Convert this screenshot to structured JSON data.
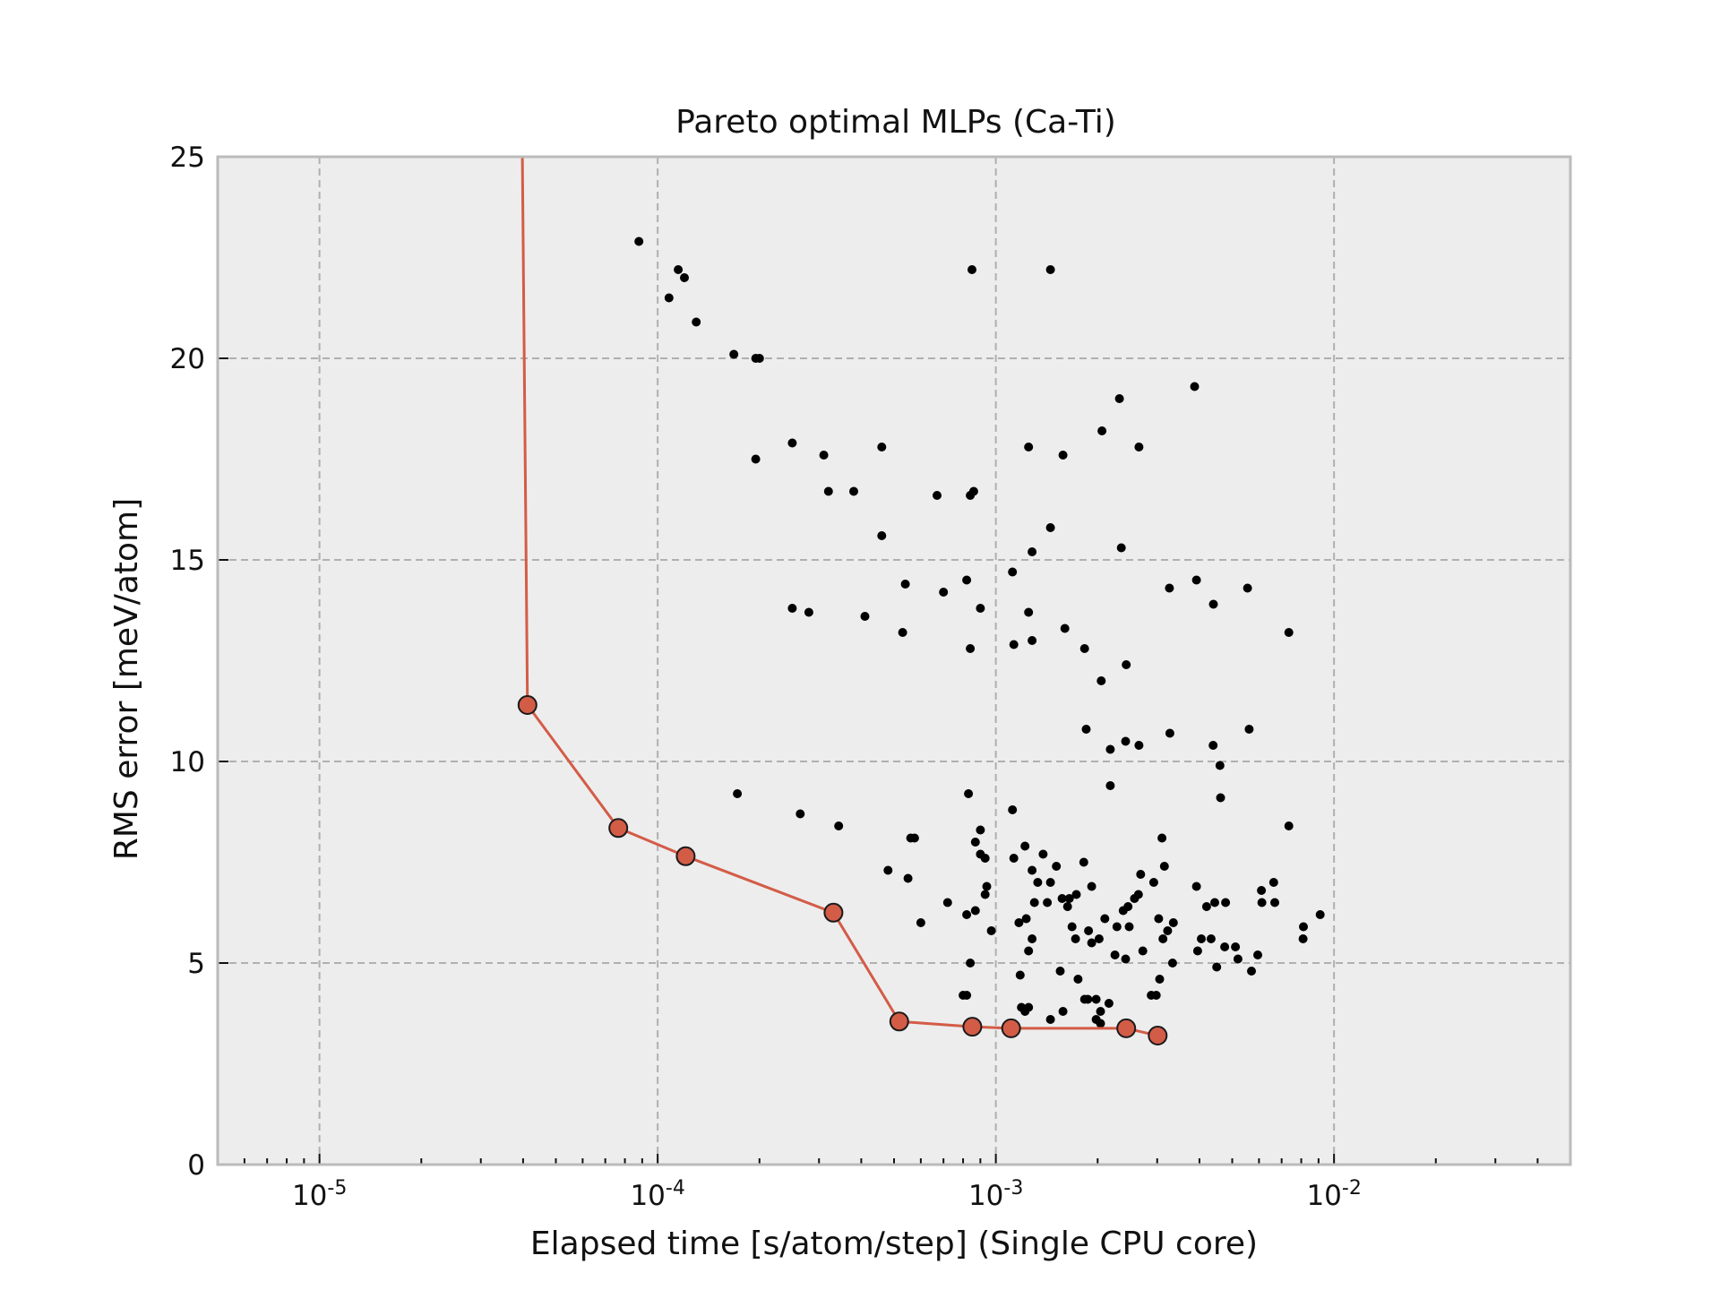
{
  "chart_data": {
    "type": "scatter",
    "title": "Pareto optimal MLPs (Ca-Ti)",
    "xlabel": "Elapsed time [s/atom/step] (Single CPU core)",
    "ylabel": "RMS error [meV/atom]",
    "xscale": "log",
    "xlim": [
      5e-06,
      0.05
    ],
    "ylim": [
      0,
      25
    ],
    "grid": true,
    "background": "#ededed",
    "frame_color": "#bbbbbb",
    "x_tick_labels": [
      {
        "value": 1e-05,
        "base": "10",
        "exp": "-5"
      },
      {
        "value": 0.0001,
        "base": "10",
        "exp": "-4"
      },
      {
        "value": 0.001,
        "base": "10",
        "exp": "-3"
      },
      {
        "value": 0.01,
        "base": "10",
        "exp": "-2"
      }
    ],
    "y_ticks": [
      0,
      5,
      10,
      15,
      20,
      25
    ],
    "y_tick_labels": [
      "0",
      "5",
      "10",
      "15",
      "20",
      "25"
    ],
    "series": [
      {
        "kind": "scatter",
        "color": "#000000",
        "points": [
          [
            8.8e-05,
            22.9
          ],
          [
            0.000115,
            22.2
          ],
          [
            0.000108,
            21.5
          ],
          [
            0.00012,
            22.0
          ],
          [
            0.00013,
            20.9
          ],
          [
            0.000168,
            20.1
          ],
          [
            0.000195,
            20.0
          ],
          [
            0.0002,
            20.0
          ],
          [
            0.00085,
            22.2
          ],
          [
            0.00145,
            22.2
          ],
          [
            0.000195,
            17.5
          ],
          [
            0.00025,
            17.9
          ],
          [
            0.00031,
            17.6
          ],
          [
            0.00046,
            17.8
          ],
          [
            0.00032,
            16.7
          ],
          [
            0.00038,
            16.7
          ],
          [
            0.00067,
            16.6
          ],
          [
            0.00084,
            16.6
          ],
          [
            0.00086,
            16.7
          ],
          [
            0.00046,
            15.6
          ],
          [
            0.00125,
            17.8
          ],
          [
            0.00158,
            17.6
          ],
          [
            0.00206,
            18.2
          ],
          [
            0.00232,
            19.0
          ],
          [
            0.00265,
            17.8
          ],
          [
            0.00387,
            19.3
          ],
          [
            0.00145,
            15.8
          ],
          [
            0.00128,
            15.2
          ],
          [
            0.00235,
            15.3
          ],
          [
            0.00025,
            13.8
          ],
          [
            0.00028,
            13.7
          ],
          [
            0.00041,
            13.6
          ],
          [
            0.00054,
            14.4
          ],
          [
            0.00053,
            13.2
          ],
          [
            0.0007,
            14.2
          ],
          [
            0.00082,
            14.5
          ],
          [
            0.0009,
            13.8
          ],
          [
            0.00084,
            12.8
          ],
          [
            0.00112,
            14.7
          ],
          [
            0.00113,
            12.9
          ],
          [
            0.00125,
            13.7
          ],
          [
            0.00128,
            13.0
          ],
          [
            0.0016,
            13.3
          ],
          [
            0.00183,
            12.8
          ],
          [
            0.00205,
            12.0
          ],
          [
            0.00243,
            12.4
          ],
          [
            0.00326,
            14.3
          ],
          [
            0.00392,
            14.5
          ],
          [
            0.0044,
            13.9
          ],
          [
            0.00555,
            14.3
          ],
          [
            0.00735,
            13.2
          ],
          [
            0.00185,
            10.8
          ],
          [
            0.00218,
            10.3
          ],
          [
            0.00242,
            10.5
          ],
          [
            0.00265,
            10.4
          ],
          [
            0.00327,
            10.7
          ],
          [
            0.00439,
            10.4
          ],
          [
            0.0046,
            9.9
          ],
          [
            0.00561,
            10.8
          ],
          [
            0.00218,
            9.4
          ],
          [
            0.00462,
            9.1
          ],
          [
            0.000172,
            9.2
          ],
          [
            0.000264,
            8.7
          ],
          [
            0.000343,
            8.4
          ],
          [
            0.00083,
            9.2
          ],
          [
            0.00112,
            8.8
          ],
          [
            0.00056,
            8.1
          ],
          [
            0.000575,
            8.1
          ],
          [
            0.00087,
            8.0
          ],
          [
            0.0009,
            8.3
          ],
          [
            0.0009,
            7.7
          ],
          [
            0.00093,
            7.6
          ],
          [
            0.00048,
            7.3
          ],
          [
            0.00055,
            7.1
          ],
          [
            0.0006,
            6.0
          ],
          [
            0.00072,
            6.5
          ],
          [
            0.00082,
            6.2
          ],
          [
            0.00087,
            6.3
          ],
          [
            0.00093,
            6.7
          ],
          [
            0.00094,
            6.9
          ],
          [
            0.00084,
            5.0
          ],
          [
            0.00097,
            5.8
          ],
          [
            0.0008,
            4.2
          ],
          [
            0.00082,
            4.2
          ],
          [
            0.00113,
            7.6
          ],
          [
            0.00122,
            7.9
          ],
          [
            0.00128,
            7.3
          ],
          [
            0.00133,
            7.0
          ],
          [
            0.00138,
            7.7
          ],
          [
            0.00145,
            7.0
          ],
          [
            0.00151,
            7.4
          ],
          [
            0.00157,
            6.6
          ],
          [
            0.00165,
            6.6
          ],
          [
            0.00173,
            6.7
          ],
          [
            0.00182,
            7.5
          ],
          [
            0.00192,
            6.9
          ],
          [
            0.0021,
            6.1
          ],
          [
            0.00228,
            5.9
          ],
          [
            0.00238,
            6.3
          ],
          [
            0.00246,
            6.4
          ],
          [
            0.00257,
            6.6
          ],
          [
            0.00264,
            6.7
          ],
          [
            0.00268,
            7.2
          ],
          [
            0.00293,
            7.0
          ],
          [
            0.00303,
            6.1
          ],
          [
            0.00315,
            7.4
          ],
          [
            0.00335,
            6.0
          ],
          [
            0.0031,
            8.1
          ],
          [
            0.00392,
            6.9
          ],
          [
            0.0042,
            6.4
          ],
          [
            0.00444,
            6.5
          ],
          [
            0.00478,
            6.5
          ],
          [
            0.00405,
            5.6
          ],
          [
            0.00395,
            5.3
          ],
          [
            0.00433,
            5.6
          ],
          [
            0.00475,
            5.4
          ],
          [
            0.00511,
            5.4
          ],
          [
            0.0045,
            4.9
          ],
          [
            0.0052,
            5.1
          ],
          [
            0.0057,
            4.8
          ],
          [
            0.00595,
            5.2
          ],
          [
            0.00612,
            6.5
          ],
          [
            0.0061,
            6.8
          ],
          [
            0.00663,
            7.0
          ],
          [
            0.00668,
            6.5
          ],
          [
            0.00735,
            8.4
          ],
          [
            0.00812,
            5.9
          ],
          [
            0.0081,
            5.6
          ],
          [
            0.0091,
            6.2
          ],
          [
            0.00117,
            6.0
          ],
          [
            0.00123,
            6.1
          ],
          [
            0.00128,
            5.6
          ],
          [
            0.00125,
            5.3
          ],
          [
            0.00118,
            4.7
          ],
          [
            0.0013,
            6.5
          ],
          [
            0.00142,
            6.5
          ],
          [
            0.00155,
            4.8
          ],
          [
            0.00163,
            6.4
          ],
          [
            0.00168,
            5.9
          ],
          [
            0.00172,
            5.6
          ],
          [
            0.00175,
            4.6
          ],
          [
            0.00188,
            5.8
          ],
          [
            0.00192,
            5.5
          ],
          [
            0.00202,
            5.6
          ],
          [
            0.00204,
            3.8
          ],
          [
            0.00198,
            4.1
          ],
          [
            0.00216,
            4.0
          ],
          [
            0.00225,
            5.2
          ],
          [
            0.00242,
            5.1
          ],
          [
            0.00248,
            5.9
          ],
          [
            0.00272,
            5.3
          ],
          [
            0.00288,
            4.2
          ],
          [
            0.00298,
            4.2
          ],
          [
            0.00305,
            4.6
          ],
          [
            0.00312,
            5.6
          ],
          [
            0.00322,
            5.8
          ],
          [
            0.00333,
            5.0
          ],
          [
            0.00119,
            3.9
          ],
          [
            0.00122,
            3.8
          ],
          [
            0.00125,
            3.9
          ],
          [
            0.00145,
            3.6
          ],
          [
            0.00158,
            3.8
          ],
          [
            0.00183,
            4.1
          ],
          [
            0.00187,
            4.1
          ],
          [
            0.00198,
            3.6
          ],
          [
            0.00204,
            3.5
          ]
        ]
      },
      {
        "kind": "line-markers",
        "name": "pareto",
        "color": "#d35c47",
        "marker_fill": "#d35c47",
        "marker_edge": "#1a1a1a",
        "points": [
          [
            3.98e-05,
            25.0
          ],
          [
            4.12e-05,
            11.4
          ],
          [
            7.65e-05,
            8.35
          ],
          [
            0.000121,
            7.65
          ],
          [
            0.000331,
            6.25
          ],
          [
            0.000518,
            3.55
          ],
          [
            0.000852,
            3.42
          ],
          [
            0.00111,
            3.38
          ],
          [
            0.00243,
            3.38
          ],
          [
            0.00301,
            3.2
          ]
        ]
      }
    ]
  }
}
